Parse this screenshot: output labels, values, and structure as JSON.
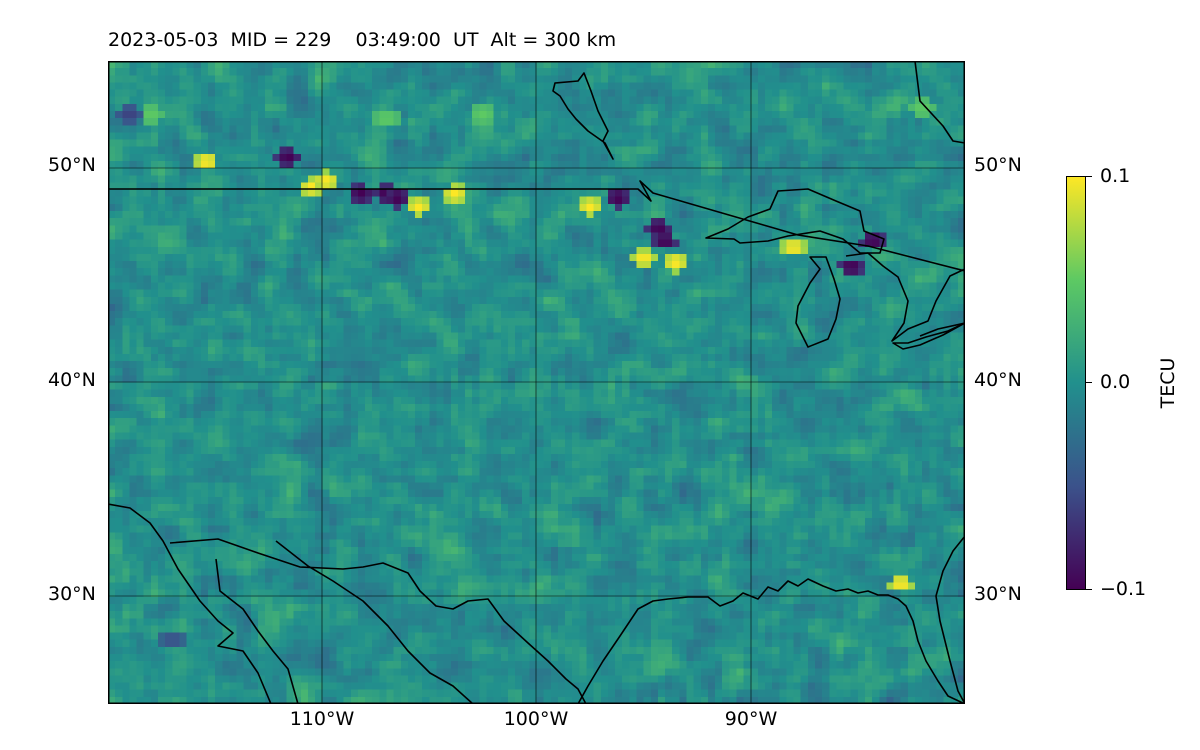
{
  "title": "2023-05-03  MID = 229    03:49:00  UT  Alt = 300 km",
  "map": {
    "extent": {
      "lon": [
        -120,
        -80
      ],
      "lat": [
        25,
        55
      ]
    },
    "lat_labels": [
      {
        "value": 50,
        "text": "50°N"
      },
      {
        "value": 40,
        "text": "40°N"
      },
      {
        "value": 30,
        "text": "30°N"
      }
    ],
    "lon_labels": [
      {
        "value": -110,
        "text": "110°W"
      },
      {
        "value": -100,
        "text": "100°W"
      },
      {
        "value": -90,
        "text": "90°W"
      }
    ],
    "gridline_color": "#000000",
    "coastline_color": "#000000"
  },
  "colorbar": {
    "label": "TECU",
    "min": -0.1,
    "max": 0.1,
    "ticks": [
      {
        "value": 0.1,
        "text": "0.1"
      },
      {
        "value": 0.0,
        "text": "0.0"
      },
      {
        "value": -0.1,
        "text": "−0.1"
      }
    ],
    "colormap": "viridis",
    "colors": [
      "#440154",
      "#3b528b",
      "#21908d",
      "#5dc963",
      "#fde725"
    ]
  },
  "chart_data": {
    "type": "heatmap",
    "title": "2023-05-03  MID = 229    03:49:00  UT  Alt = 300 km",
    "xlabel": "",
    "ylabel": "",
    "xlim": [
      -120,
      -80
    ],
    "ylim": [
      25,
      55
    ],
    "value_label": "TECU",
    "value_range": [
      -0.1,
      0.1
    ],
    "background_value": 0.0,
    "noise_amplitude": 0.03,
    "hotspots": [
      {
        "lon": -110.5,
        "lat": 49.1,
        "value": 0.1
      },
      {
        "lon": -109.8,
        "lat": 49.4,
        "value": 0.1
      },
      {
        "lon": -115.4,
        "lat": 50.3,
        "value": 0.1
      },
      {
        "lon": -108.2,
        "lat": 48.8,
        "value": -0.1
      },
      {
        "lon": -107.0,
        "lat": 48.8,
        "value": -0.1
      },
      {
        "lon": -106.5,
        "lat": 48.6,
        "value": -0.1
      },
      {
        "lon": -105.5,
        "lat": 48.2,
        "value": 0.1
      },
      {
        "lon": -103.8,
        "lat": 48.8,
        "value": 0.1
      },
      {
        "lon": -97.5,
        "lat": 48.2,
        "value": 0.1
      },
      {
        "lon": -96.2,
        "lat": 48.6,
        "value": -0.1
      },
      {
        "lon": -94.3,
        "lat": 47.2,
        "value": -0.1
      },
      {
        "lon": -94.0,
        "lat": 46.6,
        "value": -0.1
      },
      {
        "lon": -95.0,
        "lat": 45.8,
        "value": 0.1
      },
      {
        "lon": -93.5,
        "lat": 45.6,
        "value": 0.1
      },
      {
        "lon": -88.0,
        "lat": 46.3,
        "value": 0.1
      },
      {
        "lon": -84.3,
        "lat": 46.6,
        "value": -0.1
      },
      {
        "lon": -85.3,
        "lat": 45.4,
        "value": -0.1
      },
      {
        "lon": -111.6,
        "lat": 50.5,
        "value": -0.1
      },
      {
        "lon": -118.0,
        "lat": 52.5,
        "value": 0.05
      },
      {
        "lon": -107.0,
        "lat": 52.3,
        "value": 0.05
      },
      {
        "lon": -102.5,
        "lat": 52.5,
        "value": 0.05
      },
      {
        "lon": -82.0,
        "lat": 52.8,
        "value": 0.05
      },
      {
        "lon": -83.0,
        "lat": 30.6,
        "value": 0.1
      },
      {
        "lon": -119.0,
        "lat": 52.5,
        "value": -0.06
      },
      {
        "lon": -117.0,
        "lat": 28.0,
        "value": -0.05
      }
    ]
  }
}
